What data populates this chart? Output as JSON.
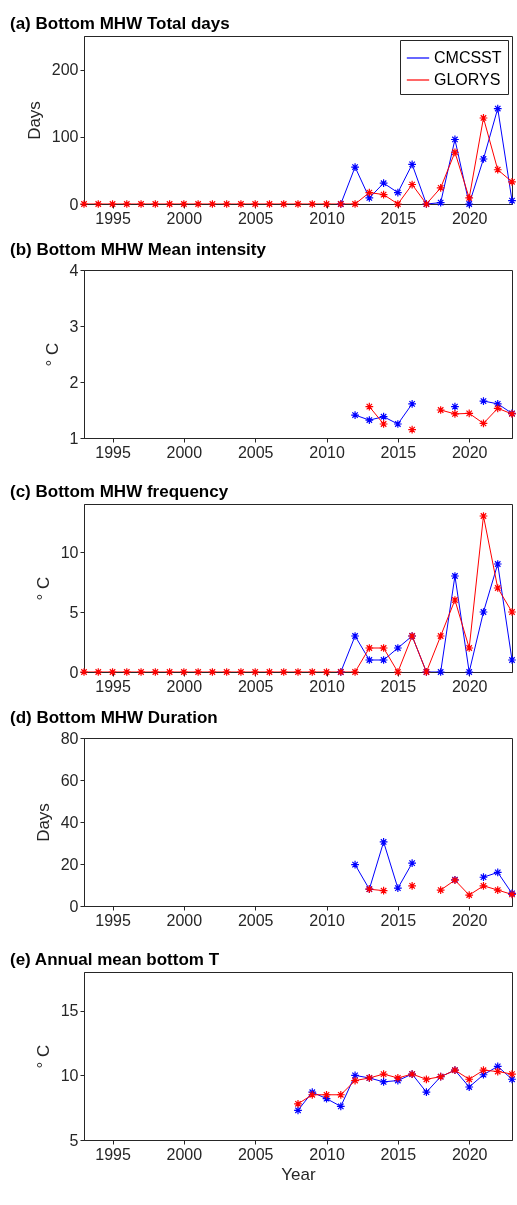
{
  "chart_data": [
    {
      "type": "line",
      "title": "(a) Bottom MHW Total days",
      "ylabel": "Days",
      "marker": "cross",
      "legend": "top right",
      "xlim": [
        1993,
        2023
      ],
      "xticks": [
        1995,
        2000,
        2005,
        2010,
        2015,
        2020
      ],
      "ylim": [
        0,
        250
      ],
      "yticks": [
        0,
        100,
        200
      ],
      "x": [
        1993,
        1994,
        1995,
        1996,
        1997,
        1998,
        1999,
        2000,
        2001,
        2002,
        2003,
        2004,
        2005,
        2006,
        2007,
        2008,
        2009,
        2010,
        2011,
        2012,
        2013,
        2014,
        2015,
        2016,
        2017,
        2018,
        2019,
        2020,
        2021,
        2022,
        2023
      ],
      "series": [
        {
          "name": "CMCSST",
          "color": "#0000ff",
          "values": [
            null,
            null,
            null,
            null,
            null,
            null,
            null,
            null,
            null,
            null,
            null,
            null,
            null,
            null,
            null,
            null,
            null,
            null,
            0,
            55,
            9,
            31,
            17,
            59,
            0,
            2,
            96,
            0,
            67,
            142,
            5
          ]
        },
        {
          "name": "GLORYS",
          "color": "#ff0000",
          "values": [
            0,
            0,
            0,
            0,
            0,
            0,
            0,
            0,
            0,
            0,
            0,
            0,
            0,
            0,
            0,
            0,
            0,
            0,
            0,
            0,
            17,
            14,
            0,
            29,
            0,
            24,
            77,
            9,
            128,
            51,
            33
          ]
        }
      ]
    },
    {
      "type": "line",
      "title": "(b) Bottom MHW Mean intensity",
      "ylabel": "° C",
      "marker": "cross",
      "xlim": [
        1993,
        2023
      ],
      "xticks": [
        1995,
        2000,
        2005,
        2010,
        2015,
        2020
      ],
      "ylim": [
        1,
        4
      ],
      "yticks": [
        1,
        2,
        3,
        4
      ],
      "x": [
        2012,
        2013,
        2014,
        2015,
        2016,
        2017,
        2018,
        2019,
        2020,
        2021,
        2022,
        2023
      ],
      "series": [
        {
          "color": "#0000ff",
          "values": [
            1.41,
            1.32,
            1.38,
            1.25,
            1.61,
            null,
            null,
            1.56,
            null,
            1.66,
            1.61,
            1.44
          ]
        },
        {
          "color": "#ff0000",
          "values": [
            null,
            1.56,
            1.25,
            null,
            1.15,
            null,
            1.5,
            1.43,
            1.44,
            1.26,
            1.53,
            1.43
          ]
        }
      ]
    },
    {
      "type": "line",
      "title": "(c) Bottom MHW frequency",
      "ylabel": "° C",
      "marker": "cross",
      "xlim": [
        1993,
        2023
      ],
      "xticks": [
        1995,
        2000,
        2005,
        2010,
        2015,
        2020
      ],
      "ylim": [
        0,
        14
      ],
      "yticks": [
        0,
        5,
        10
      ],
      "x": [
        1993,
        1994,
        1995,
        1996,
        1997,
        1998,
        1999,
        2000,
        2001,
        2002,
        2003,
        2004,
        2005,
        2006,
        2007,
        2008,
        2009,
        2010,
        2011,
        2012,
        2013,
        2014,
        2015,
        2016,
        2017,
        2018,
        2019,
        2020,
        2021,
        2022,
        2023
      ],
      "series": [
        {
          "color": "#0000ff",
          "values": [
            null,
            null,
            null,
            null,
            null,
            null,
            null,
            null,
            null,
            null,
            null,
            null,
            null,
            null,
            null,
            null,
            null,
            null,
            0,
            3,
            1,
            1,
            2,
            3,
            0,
            0,
            8,
            0,
            5,
            9,
            1
          ]
        },
        {
          "color": "#ff0000",
          "values": [
            0,
            0,
            0,
            0,
            0,
            0,
            0,
            0,
            0,
            0,
            0,
            0,
            0,
            0,
            0,
            0,
            0,
            0,
            0,
            0,
            2,
            2,
            0,
            3,
            0,
            3,
            6,
            2,
            13,
            7,
            5
          ]
        }
      ]
    },
    {
      "type": "line",
      "title": "(d) Bottom MHW Duration",
      "ylabel": "Days",
      "marker": "cross",
      "xlim": [
        1993,
        2023
      ],
      "xticks": [
        1995,
        2000,
        2005,
        2010,
        2015,
        2020
      ],
      "ylim": [
        0,
        80
      ],
      "yticks": [
        0,
        20,
        40,
        60,
        80
      ],
      "x": [
        2012,
        2013,
        2014,
        2015,
        2016,
        2017,
        2018,
        2019,
        2020,
        2021,
        2022,
        2023
      ],
      "series": [
        {
          "color": "#0000ff",
          "values": [
            19.7,
            8,
            30.5,
            8.5,
            20.4,
            null,
            null,
            12.5,
            null,
            13.7,
            16,
            6
          ]
        },
        {
          "color": "#ff0000",
          "values": [
            null,
            8,
            7.3,
            null,
            9.6,
            null,
            7.6,
            12.3,
            5.2,
            9.6,
            7.6,
            5.5
          ]
        }
      ]
    },
    {
      "type": "line",
      "title": "(e) Annual mean bottom T",
      "ylabel": "° C",
      "xlabel": "Year",
      "marker": "cross",
      "xlim": [
        1993,
        2023
      ],
      "xticks": [
        1995,
        2000,
        2005,
        2010,
        2015,
        2020
      ],
      "ylim": [
        5,
        18
      ],
      "yticks": [
        5,
        10,
        15
      ],
      "x": [
        2008,
        2009,
        2010,
        2011,
        2012,
        2013,
        2014,
        2015,
        2016,
        2017,
        2018,
        2019,
        2020,
        2021,
        2022,
        2023
      ],
      "series": [
        {
          "color": "#0000ff",
          "values": [
            7.3,
            8.7,
            8.2,
            7.6,
            10.0,
            9.8,
            9.5,
            9.6,
            10.1,
            8.7,
            9.9,
            10.4,
            9.1,
            10.05,
            10.7,
            9.7
          ]
        },
        {
          "color": "#ff0000",
          "values": [
            7.8,
            8.5,
            8.5,
            8.5,
            9.6,
            9.8,
            10.1,
            9.8,
            10.1,
            9.7,
            9.9,
            10.4,
            9.7,
            10.4,
            10.3,
            10.1
          ]
        }
      ]
    }
  ]
}
